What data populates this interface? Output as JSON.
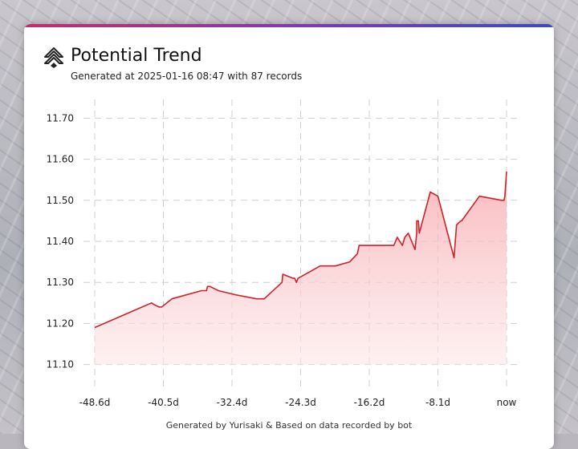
{
  "header": {
    "title": "Potential Trend",
    "subtitle": "Generated at 2025-01-16 08:47 with 87 records"
  },
  "footer": {
    "text": "Generated by Yurisaki & Based on data recorded by bot"
  },
  "colors": {
    "line": "#d0202a",
    "fill_top": "#f7a3a8",
    "fill_bottom": "#fde7e8",
    "grid": "#cfcfcf"
  },
  "chart_data": {
    "type": "area",
    "title": "Potential Trend",
    "xlabel": "",
    "ylabel": "",
    "xlim": [
      -48.6,
      0
    ],
    "ylim": [
      11.07,
      11.73
    ],
    "grid": true,
    "x_ticks": [
      "-48.6d",
      "-40.5d",
      "-32.4d",
      "-24.3d",
      "-16.2d",
      "-8.1d",
      "now"
    ],
    "x_tick_values": [
      -48.6,
      -40.5,
      -32.4,
      -24.3,
      -16.2,
      -8.1,
      0
    ],
    "y_ticks": [
      "11.10",
      "11.20",
      "11.30",
      "11.40",
      "11.50",
      "11.60",
      "11.70"
    ],
    "y_tick_values": [
      11.1,
      11.2,
      11.3,
      11.4,
      11.5,
      11.6,
      11.7
    ],
    "series": [
      {
        "x": [
          -48.6,
          -41.9,
          -41.5,
          -41.0,
          -40.7,
          -39.5,
          -36.0,
          -35.4,
          -35.3,
          -35.0,
          -34.0,
          -32.0,
          -29.5,
          -28.6,
          -26.5,
          -26.4,
          -25.2,
          -25.0,
          -24.8,
          -24.6,
          -22.0,
          -20.5,
          -20.2,
          -18.5,
          -17.6,
          -17.4,
          -13.3,
          -12.9,
          -12.6,
          -12.3,
          -12.0,
          -11.6,
          -11.2,
          -10.8,
          -10.6,
          -10.6,
          -10.4,
          -10.3,
          -9.0,
          -8.1,
          -6.2,
          -5.9,
          -5.4,
          -5.3,
          -3.2,
          -0.6,
          -0.3,
          -0.2,
          0.0
        ],
        "y": [
          11.19,
          11.25,
          11.245,
          11.24,
          11.24,
          11.26,
          11.28,
          11.28,
          11.29,
          11.29,
          11.28,
          11.27,
          11.26,
          11.26,
          11.3,
          11.32,
          11.31,
          11.31,
          11.3,
          11.31,
          11.34,
          11.34,
          11.34,
          11.35,
          11.37,
          11.39,
          11.39,
          11.41,
          11.4,
          11.39,
          11.41,
          11.42,
          11.4,
          11.38,
          11.42,
          11.45,
          11.45,
          11.42,
          11.52,
          11.51,
          11.36,
          11.44,
          11.45,
          11.45,
          11.51,
          11.5,
          11.5,
          11.51,
          11.57
        ]
      }
    ]
  }
}
